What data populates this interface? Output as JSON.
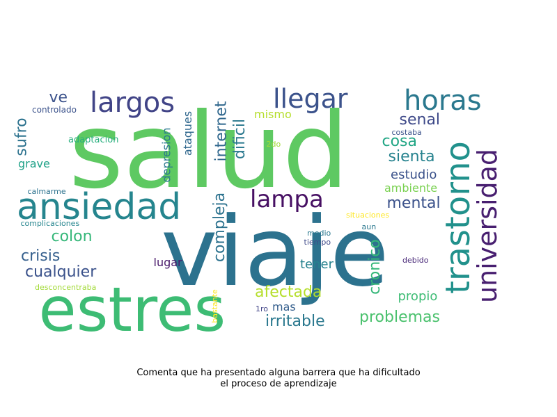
{
  "words": [
    {
      "text": "salud",
      "color": "#5ec962"
    },
    {
      "text": "viaje",
      "color": "#2c728e"
    },
    {
      "text": "estres",
      "color": "#3dbc74"
    },
    {
      "text": "ansiedad",
      "color": "#25858e"
    },
    {
      "text": "trastorno",
      "color": "#21918c"
    },
    {
      "text": "largos",
      "color": "#414487"
    },
    {
      "text": "horas",
      "color": "#2a788e"
    },
    {
      "text": "llegar",
      "color": "#3b528b"
    },
    {
      "text": "universidad",
      "color": "#481f70"
    },
    {
      "text": "lampa",
      "color": "#471063"
    },
    {
      "text": "internet",
      "color": "#31688e"
    },
    {
      "text": "dificil",
      "color": "#2a788e"
    },
    {
      "text": "compleja",
      "color": "#2c728e"
    },
    {
      "text": "ve",
      "color": "#3b528b"
    },
    {
      "text": "mental",
      "color": "#3b528b"
    },
    {
      "text": "crisis",
      "color": "#355f8d"
    },
    {
      "text": "cualquier",
      "color": "#3b528b"
    },
    {
      "text": "colon",
      "color": "#35b779"
    },
    {
      "text": "cronico",
      "color": "#35b779"
    },
    {
      "text": "afectada",
      "color": "#b5de2b"
    },
    {
      "text": "irritable",
      "color": "#2a788e"
    },
    {
      "text": "problemas",
      "color": "#4ac16d"
    },
    {
      "text": "senal",
      "color": "#3e4989"
    },
    {
      "text": "cosa",
      "color": "#21a685"
    },
    {
      "text": "sienta",
      "color": "#26828e"
    },
    {
      "text": "estudio",
      "color": "#3b528b"
    },
    {
      "text": "ambiente",
      "color": "#7ad151"
    },
    {
      "text": "propio",
      "color": "#3dbc74"
    },
    {
      "text": "tener",
      "color": "#26828e"
    },
    {
      "text": "lugar",
      "color": "#48186a"
    },
    {
      "text": "mas",
      "color": "#355f8d"
    },
    {
      "text": "sufro",
      "color": "#2c728e"
    },
    {
      "text": "grave",
      "color": "#1fa187"
    },
    {
      "text": "ataques",
      "color": "#31688e"
    },
    {
      "text": "depresion",
      "color": "#2a788e"
    },
    {
      "text": "mismo",
      "color": "#b5de2b"
    },
    {
      "text": "adaptacion",
      "color": "#2ab07f"
    },
    {
      "text": "controlado",
      "color": "#3b528b"
    },
    {
      "text": "calmarme",
      "color": "#2c728e"
    },
    {
      "text": "complicaciones",
      "color": "#25858e"
    },
    {
      "text": "desconcentraba",
      "color": "#a2da37"
    },
    {
      "text": "2do",
      "color": "#a2da37"
    },
    {
      "text": "costaba",
      "color": "#3b528b"
    },
    {
      "text": "situaciones",
      "color": "#fde725"
    },
    {
      "text": "aun",
      "color": "#2a788e"
    },
    {
      "text": "medio",
      "color": "#2a788e"
    },
    {
      "text": "tiempo",
      "color": "#3e4989"
    },
    {
      "text": "debido",
      "color": "#482878"
    },
    {
      "text": "bastante",
      "color": "#fde725"
    },
    {
      "text": "1ro",
      "color": "#414487"
    }
  ],
  "caption": {
    "line1": "Comenta que ha presentado alguna barrera que ha dificultado",
    "line2": "el proceso de aprendizaje"
  }
}
